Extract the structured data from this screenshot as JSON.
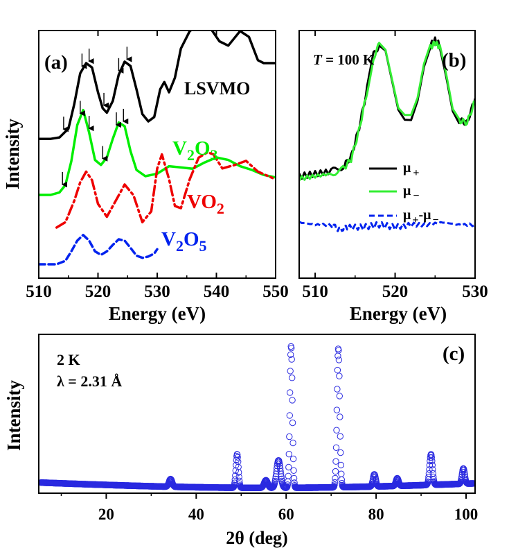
{
  "chart_data": [
    {
      "panel": "(a)",
      "type": "line",
      "xlabel": "Energy (eV)",
      "ylabel": "Intensity",
      "xlim": [
        510,
        550
      ],
      "xticks": [
        "510",
        "520",
        "530",
        "540",
        "550"
      ],
      "yticks_shown": false,
      "series": [
        {
          "name": "LSVMO",
          "color": "#000000",
          "style": "solid",
          "x": [
            510,
            512,
            513.5,
            515,
            516,
            517,
            518,
            519,
            520,
            520.8,
            521.5,
            522.5,
            523.5,
            524.5,
            525.5,
            526.5,
            527.5,
            528.5,
            529.5,
            530.5,
            531.2,
            532,
            533,
            534,
            535.5,
            537.3,
            539,
            540.5,
            542,
            544,
            545.5,
            547,
            548,
            550
          ],
          "y": [
            0.18,
            0.18,
            0.19,
            0.25,
            0.42,
            0.63,
            0.7,
            0.67,
            0.5,
            0.39,
            0.36,
            0.44,
            0.62,
            0.71,
            0.68,
            0.52,
            0.35,
            0.3,
            0.33,
            0.52,
            0.57,
            0.5,
            0.6,
            0.8,
            0.92,
            0.97,
            0.94,
            0.85,
            0.82,
            0.92,
            0.88,
            0.72,
            0.7,
            0.7
          ]
        },
        {
          "name": "V2O3",
          "color": "#00ee00",
          "style": "solid",
          "x": [
            510,
            512,
            513.5,
            514.5,
            515.5,
            516.5,
            517.5,
            518.5,
            519.5,
            520.5,
            521.5,
            522.5,
            523.5,
            524.5,
            525.5,
            526.5,
            528,
            530,
            532,
            534,
            536,
            538,
            540,
            542,
            544,
            546,
            548,
            550
          ],
          "y": [
            0.0,
            0.0,
            0.02,
            0.08,
            0.27,
            0.56,
            0.68,
            0.5,
            0.28,
            0.24,
            0.3,
            0.45,
            0.58,
            0.55,
            0.35,
            0.2,
            0.15,
            0.17,
            0.23,
            0.22,
            0.21,
            0.26,
            0.3,
            0.28,
            0.23,
            0.2,
            0.16,
            0.14
          ]
        },
        {
          "name": "VO2",
          "color": "#ee0000",
          "style": "dash-dot",
          "x": [
            513,
            514.5,
            516,
            517,
            518,
            519,
            520,
            521.5,
            523,
            524.5,
            526,
            527.5,
            529,
            530,
            530.8,
            532,
            533,
            534,
            535.5,
            537,
            538.5,
            539.5,
            541,
            543,
            545,
            547,
            549.5
          ],
          "y": [
            0.0,
            0.05,
            0.25,
            0.42,
            0.52,
            0.44,
            0.22,
            0.1,
            0.25,
            0.4,
            0.3,
            0.05,
            0.15,
            0.55,
            0.68,
            0.45,
            0.2,
            0.18,
            0.45,
            0.65,
            0.7,
            0.68,
            0.55,
            0.58,
            0.62,
            0.52,
            0.46
          ]
        },
        {
          "name": "V2O5",
          "color": "#0022ee",
          "style": "dashed",
          "x": [
            510,
            513,
            514.5,
            515.5,
            516.5,
            517.5,
            518.5,
            519.5,
            520.5,
            521.5,
            522.5,
            523.5,
            524.5,
            525.5,
            526.5,
            527.5,
            528.5,
            529.5,
            530
          ],
          "y": [
            0.0,
            0.0,
            0.08,
            0.3,
            0.55,
            0.68,
            0.55,
            0.3,
            0.22,
            0.3,
            0.45,
            0.58,
            0.55,
            0.38,
            0.2,
            0.15,
            0.18,
            0.25,
            0.35
          ]
        }
      ],
      "labels": [
        {
          "text": "LSVMO",
          "color": "#000000"
        },
        {
          "text": "V",
          "sub": "2",
          "text2": "O",
          "sub2": "3",
          "color": "#00ee00"
        },
        {
          "text": "VO",
          "sub": "2",
          "color": "#ee0000"
        },
        {
          "text": "V",
          "sub": "2",
          "text2": "O",
          "sub2": "5",
          "color": "#0022ee"
        }
      ],
      "arrows_at": [
        {
          "curve": "LSVMO",
          "x": [
            514.2,
            517.3,
            518.5,
            521.0,
            523.5,
            524.9
          ]
        },
        {
          "curve": "V2O3",
          "x": [
            514.0,
            517.0,
            518.5,
            520.8,
            523.1,
            524.3
          ]
        }
      ]
    },
    {
      "panel": "(b)",
      "type": "line",
      "annotation": "T = 100 K",
      "annotation_italic": "T",
      "annotation_rest": " = 100 K",
      "xlabel": "Energy (eV)",
      "xlim": [
        508,
        530
      ],
      "xticks": [
        "510",
        "520",
        "530"
      ],
      "series": [
        {
          "name": "μ+",
          "color": "#000000",
          "style": "solid",
          "x": [
            508,
            510,
            512,
            513.5,
            514.5,
            515.5,
            516.5,
            517.3,
            518,
            518.8,
            519.6,
            520.4,
            521.2,
            522,
            522.8,
            523.6,
            524.4,
            525,
            525.6,
            526.4,
            527.2,
            528,
            529,
            530
          ],
          "y": [
            0.42,
            0.43,
            0.44,
            0.46,
            0.5,
            0.62,
            0.78,
            0.92,
            0.96,
            0.94,
            0.82,
            0.7,
            0.66,
            0.66,
            0.74,
            0.88,
            0.96,
            0.98,
            0.96,
            0.84,
            0.7,
            0.65,
            0.64,
            0.74
          ]
        },
        {
          "name": "μ−",
          "color": "#33ee33",
          "style": "solid",
          "x": [
            508,
            510,
            512,
            513.5,
            514.5,
            515.5,
            516.5,
            517.3,
            518,
            518.8,
            519.6,
            520.4,
            521.2,
            522,
            522.8,
            523.6,
            524.4,
            525,
            525.6,
            526.4,
            527.2,
            528,
            529,
            530
          ],
          "y": [
            0.41,
            0.42,
            0.43,
            0.45,
            0.49,
            0.61,
            0.77,
            0.91,
            0.96,
            0.93,
            0.81,
            0.69,
            0.66,
            0.66,
            0.73,
            0.87,
            0.95,
            0.97,
            0.95,
            0.83,
            0.69,
            0.65,
            0.64,
            0.73
          ]
        },
        {
          "name": "μ+-μ−",
          "color": "#0022ee",
          "style": "dashed",
          "x": [
            508,
            510,
            512,
            513,
            514,
            516,
            518,
            520,
            522,
            524,
            526,
            528,
            530
          ],
          "y": [
            0.23,
            0.22,
            0.22,
            0.2,
            0.21,
            0.21,
            0.22,
            0.21,
            0.22,
            0.22,
            0.23,
            0.22,
            0.22
          ]
        }
      ],
      "legend": [
        {
          "sym": "μ",
          "sub": "+",
          "color": "#000000",
          "style": "solid"
        },
        {
          "sym": "μ",
          "sub": "−",
          "color": "#33ee33",
          "style": "solid"
        },
        {
          "sym": "μ",
          "sub": "+",
          "mid": "-μ",
          "sub2": "−",
          "color": "#0022ee",
          "style": "dashed"
        }
      ]
    },
    {
      "panel": "(c)",
      "type": "scatter",
      "annotation_line1": "2 K",
      "annotation_line2": "λ = 2.31 Å",
      "xlabel": "2θ (deg)",
      "ylabel": "Intensity",
      "xlim": [
        5,
        102
      ],
      "xticks": [
        "20",
        "40",
        "60",
        "80",
        "100"
      ],
      "marker": "open-circle",
      "color": "#2a2ae0",
      "background_y": [
        0.07,
        0.04
      ],
      "peaks": [
        {
          "x": 34.3,
          "height": 0.05,
          "width": 0.35
        },
        {
          "x": 49.1,
          "height": 0.22,
          "width": 0.28
        },
        {
          "x": 55.5,
          "height": 0.05,
          "width": 0.4
        },
        {
          "x": 58.3,
          "height": 0.18,
          "width": 0.45
        },
        {
          "x": 61.1,
          "height": 0.93,
          "width": 0.28
        },
        {
          "x": 71.6,
          "height": 0.91,
          "width": 0.3
        },
        {
          "x": 79.6,
          "height": 0.08,
          "width": 0.3
        },
        {
          "x": 84.7,
          "height": 0.05,
          "width": 0.3
        },
        {
          "x": 92.2,
          "height": 0.2,
          "width": 0.32
        },
        {
          "x": 99.4,
          "height": 0.1,
          "width": 0.3
        }
      ]
    }
  ]
}
